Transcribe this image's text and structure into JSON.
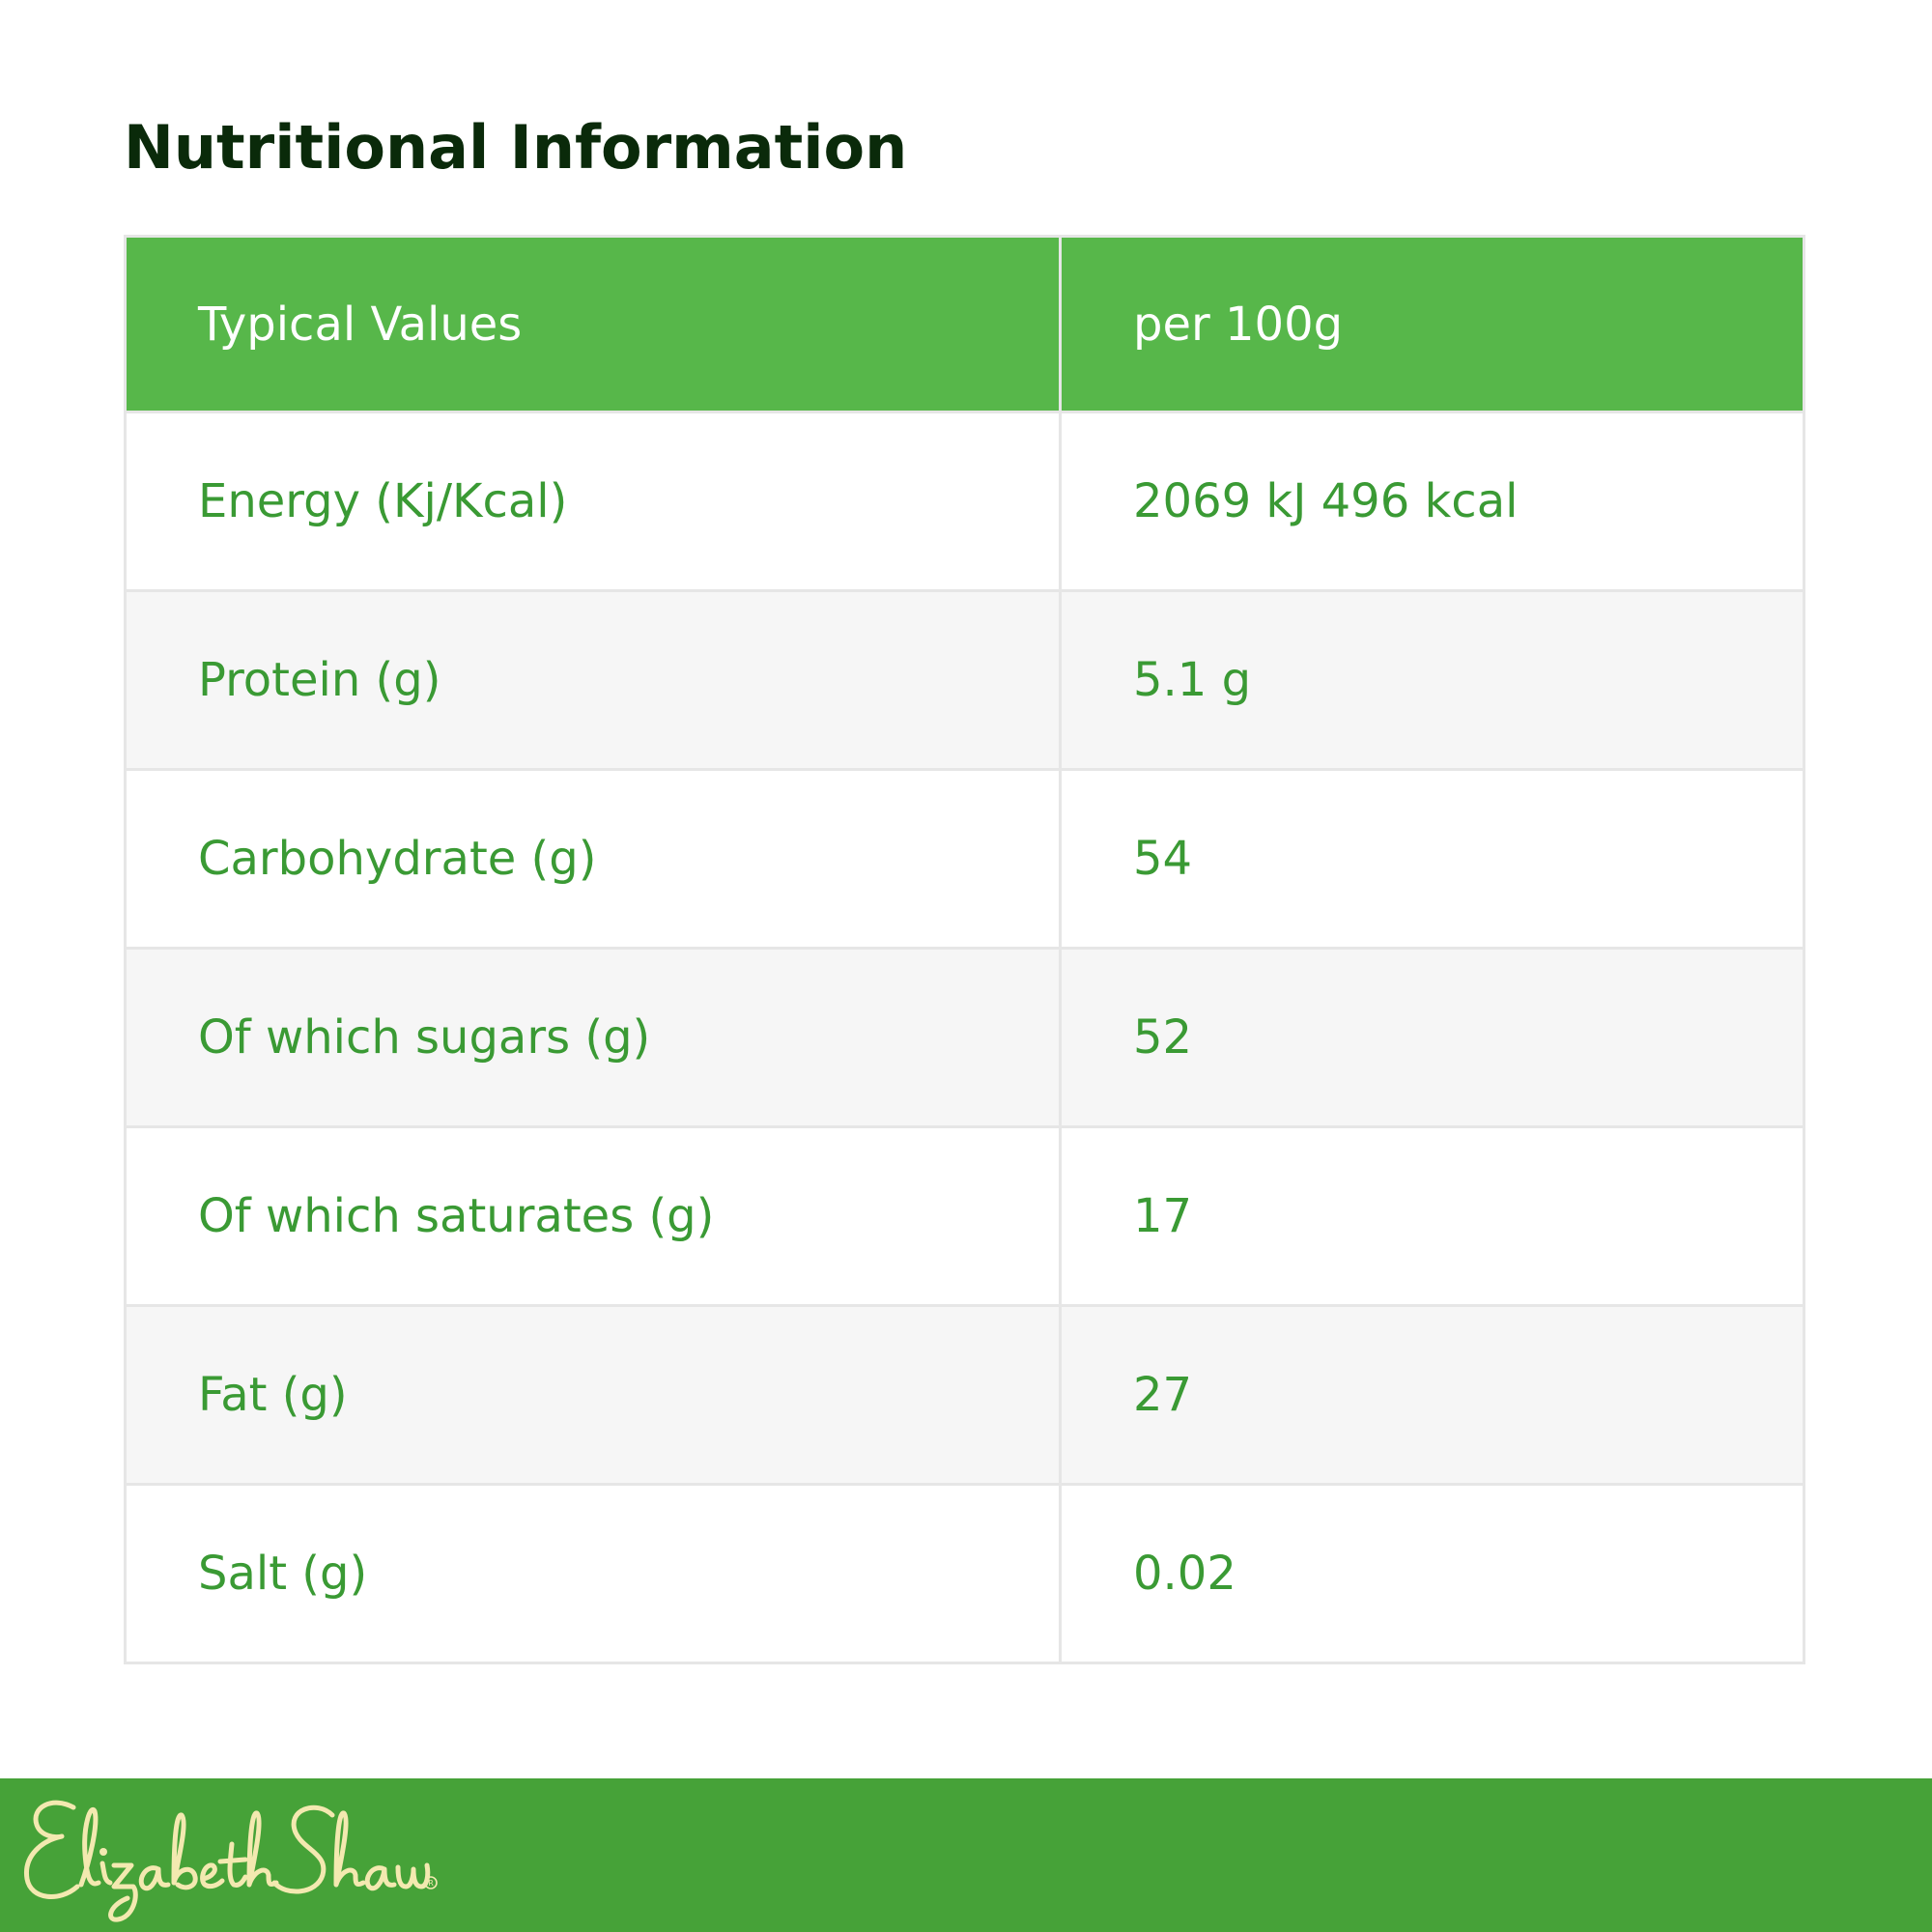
{
  "title": "Nutritional Information",
  "table": {
    "headers": [
      "Typical Values",
      "per 100g"
    ],
    "rows": [
      [
        "Energy (Kj/Kcal)",
        "2069 kJ 496 kcal"
      ],
      [
        "Protein (g)",
        "5.1 g"
      ],
      [
        "Carbohydrate (g)",
        "54"
      ],
      [
        "Of which sugars (g)",
        "52"
      ],
      [
        "Of which saturates (g)",
        "17"
      ],
      [
        "Fat (g)",
        "27"
      ],
      [
        "Salt (g)",
        "0.02"
      ]
    ]
  },
  "footer": {
    "logo_text": "Elizabeth Shaw",
    "logo_registered": "®"
  },
  "colors": {
    "header_green": "#57b74a",
    "footer_green": "#46a238",
    "cell_text_green": "#3a9a34",
    "logo_cream": "#f3e9b0"
  }
}
